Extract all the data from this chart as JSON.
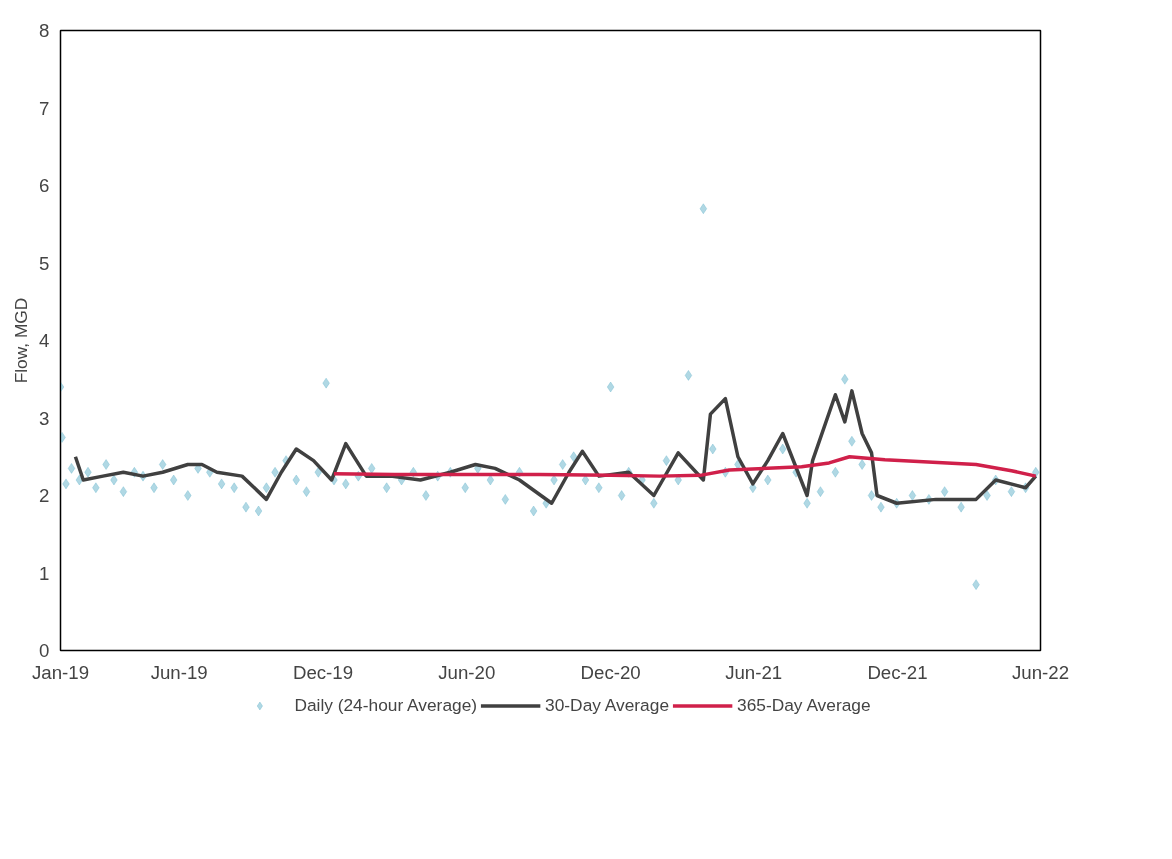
{
  "chart_data": {
    "type": "line",
    "ylabel": "Flow, MGD",
    "xlim": [
      "2019-01-01",
      "2022-06-01"
    ],
    "ylim": [
      0,
      8
    ],
    "yticks": [
      0,
      1,
      2,
      3,
      4,
      5,
      6,
      7,
      8
    ],
    "xticks": [
      {
        "value": "2019-01-01",
        "label": "Jan-19"
      },
      {
        "value": "2019-06-01",
        "label": "Jun-19"
      },
      {
        "value": "2019-12-01",
        "label": "Dec-19"
      },
      {
        "value": "2020-06-01",
        "label": "Jun-20"
      },
      {
        "value": "2020-12-01",
        "label": "Dec-20"
      },
      {
        "value": "2021-06-01",
        "label": "Jun-21"
      },
      {
        "value": "2021-12-01",
        "label": "Dec-21"
      },
      {
        "value": "2022-06-01",
        "label": "Jun-22"
      }
    ],
    "grid": false,
    "legend": "bottom",
    "line_style": "solid",
    "series": [
      {
        "name": "Daily (24-hour Average)",
        "type": "scatter",
        "marker": "diamond",
        "color": "#4fa8c4",
        "x": [
          "2019-01-01",
          "2019-01-03",
          "2019-01-08",
          "2019-01-15",
          "2019-01-25",
          "2019-02-05",
          "2019-02-15",
          "2019-02-28",
          "2019-03-10",
          "2019-03-22",
          "2019-04-05",
          "2019-04-16",
          "2019-04-30",
          "2019-05-11",
          "2019-05-25",
          "2019-06-12",
          "2019-06-25",
          "2019-07-10",
          "2019-07-25",
          "2019-08-10",
          "2019-08-25",
          "2019-09-10",
          "2019-09-20",
          "2019-10-01",
          "2019-10-15",
          "2019-10-28",
          "2019-11-10",
          "2019-11-25",
          "2019-12-05",
          "2019-12-15",
          "2019-12-30",
          "2020-01-15",
          "2020-02-01",
          "2020-02-20",
          "2020-03-10",
          "2020-03-25",
          "2020-04-10",
          "2020-04-25",
          "2020-05-11",
          "2020-05-30",
          "2020-06-15",
          "2020-07-01",
          "2020-07-20",
          "2020-08-07",
          "2020-08-25",
          "2020-09-10",
          "2020-09-20",
          "2020-10-01",
          "2020-10-15",
          "2020-10-30",
          "2020-11-16",
          "2020-12-01",
          "2020-12-15",
          "2020-12-24",
          "2021-01-10",
          "2021-01-25",
          "2021-02-10",
          "2021-02-25",
          "2021-03-10",
          "2021-03-29",
          "2021-04-10",
          "2021-04-26",
          "2021-05-12",
          "2021-05-31",
          "2021-06-19",
          "2021-07-08",
          "2021-07-25",
          "2021-08-08",
          "2021-08-25",
          "2021-09-13",
          "2021-09-25",
          "2021-10-04",
          "2021-10-17",
          "2021-10-29",
          "2021-11-10",
          "2021-11-30",
          "2021-12-20",
          "2022-01-10",
          "2022-01-30",
          "2022-02-20",
          "2022-03-11",
          "2022-03-25",
          "2022-04-05",
          "2022-04-25",
          "2022-05-13",
          "2022-05-26"
        ],
        "values": [
          3.4,
          2.75,
          2.15,
          2.35,
          2.2,
          2.3,
          2.1,
          2.4,
          2.2,
          2.05,
          2.3,
          2.25,
          2.1,
          2.4,
          2.2,
          2.0,
          2.35,
          2.3,
          2.15,
          2.1,
          1.85,
          1.8,
          2.1,
          2.3,
          2.45,
          2.2,
          2.05,
          2.3,
          3.45,
          2.2,
          2.15,
          2.25,
          2.35,
          2.1,
          2.2,
          2.3,
          2.0,
          2.25,
          2.3,
          2.1,
          2.35,
          2.2,
          1.95,
          2.3,
          1.8,
          1.9,
          2.2,
          2.4,
          2.5,
          2.2,
          2.1,
          3.4,
          2.0,
          2.3,
          2.2,
          1.9,
          2.45,
          2.2,
          3.55,
          5.7,
          2.6,
          2.3,
          2.4,
          2.1,
          2.2,
          2.6,
          2.3,
          1.9,
          2.05,
          2.3,
          3.5,
          2.7,
          2.4,
          2.0,
          1.85,
          1.9,
          2.0,
          1.95,
          2.05,
          1.85,
          0.85,
          2.0,
          2.2,
          2.05,
          2.1,
          2.3
        ]
      },
      {
        "name": "30-Day Average",
        "color": "#404040",
        "x": [
          "2019-01-20",
          "2019-01-30",
          "2019-02-24",
          "2019-03-22",
          "2019-04-16",
          "2019-05-11",
          "2019-06-12",
          "2019-06-30",
          "2019-07-19",
          "2019-08-20",
          "2019-09-20",
          "2019-10-09",
          "2019-10-28",
          "2019-11-19",
          "2019-12-12",
          "2019-12-30",
          "2020-01-25",
          "2020-02-25",
          "2020-04-03",
          "2020-05-11",
          "2020-06-12",
          "2020-07-07",
          "2020-08-07",
          "2020-09-17",
          "2020-10-09",
          "2020-10-26",
          "2020-11-16",
          "2020-12-24",
          "2021-01-25",
          "2021-02-25",
          "2021-03-29",
          "2021-04-07",
          "2021-04-26",
          "2021-05-12",
          "2021-05-31",
          "2021-06-19",
          "2021-07-08",
          "2021-08-08",
          "2021-08-15",
          "2021-09-13",
          "2021-09-25",
          "2021-10-04",
          "2021-10-17",
          "2021-10-29",
          "2021-11-05",
          "2021-11-30",
          "2022-01-19",
          "2022-03-11",
          "2022-04-05",
          "2022-05-13",
          "2022-05-26"
        ],
        "values": [
          2.5,
          2.2,
          2.25,
          2.3,
          2.25,
          2.3,
          2.4,
          2.4,
          2.3,
          2.25,
          1.95,
          2.3,
          2.6,
          2.45,
          2.2,
          2.67,
          2.25,
          2.25,
          2.2,
          2.3,
          2.4,
          2.35,
          2.2,
          1.9,
          2.3,
          2.57,
          2.25,
          2.3,
          2.0,
          2.55,
          2.2,
          3.05,
          3.25,
          2.5,
          2.15,
          2.45,
          2.8,
          2.0,
          2.45,
          3.3,
          2.95,
          3.35,
          2.8,
          2.55,
          2.0,
          1.9,
          1.95,
          1.95,
          2.2,
          2.1,
          2.25
        ]
      },
      {
        "name": "365-Day Average",
        "color": "#d0204a",
        "x": [
          "2019-12-15",
          "2020-03-01",
          "2020-06-01",
          "2020-09-01",
          "2020-12-01",
          "2021-02-01",
          "2021-03-25",
          "2021-05-01",
          "2021-08-01",
          "2021-09-05",
          "2021-10-01",
          "2021-11-15",
          "2022-01-15",
          "2022-03-11",
          "2022-04-25",
          "2022-05-26"
        ],
        "values": [
          2.28,
          2.27,
          2.27,
          2.27,
          2.26,
          2.25,
          2.26,
          2.33,
          2.37,
          2.42,
          2.5,
          2.46,
          2.43,
          2.4,
          2.32,
          2.25
        ]
      }
    ]
  }
}
